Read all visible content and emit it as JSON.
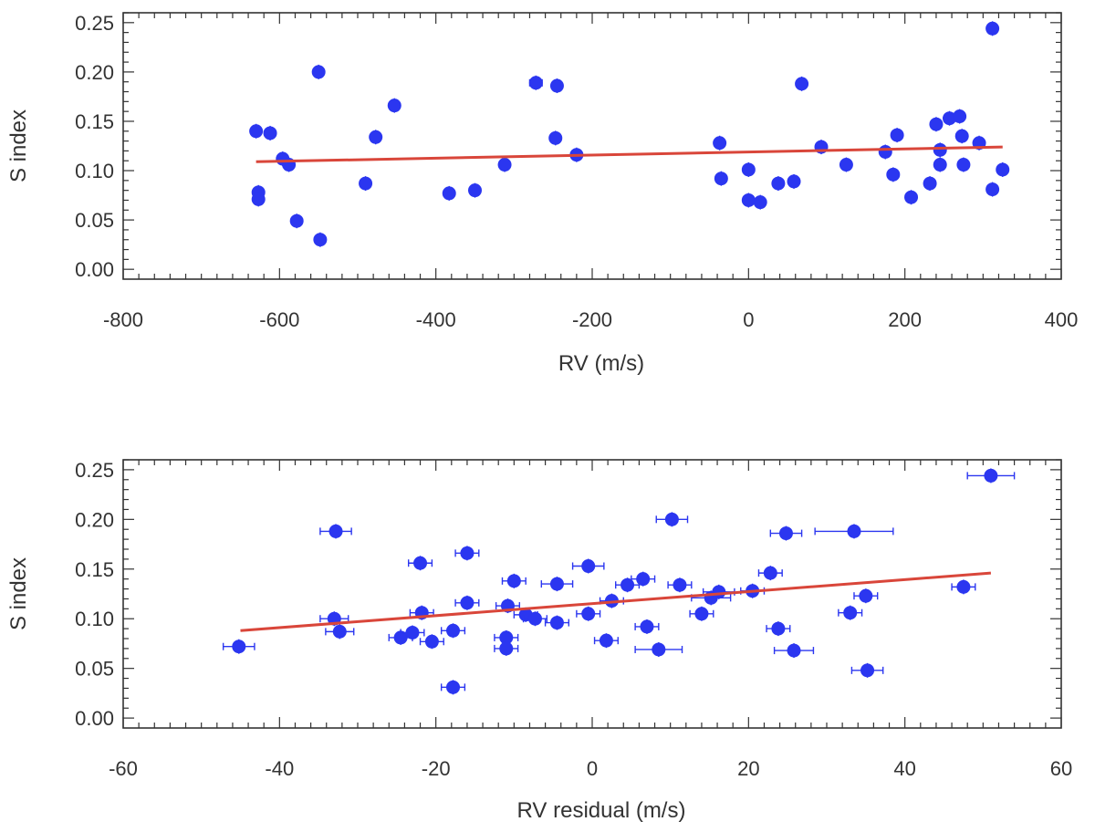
{
  "chart_data": [
    {
      "type": "scatter",
      "xlabel": "RV (m/s)",
      "ylabel": "S index",
      "xlim": [
        -800,
        400
      ],
      "ylim": [
        -0.01,
        0.26
      ],
      "xticks": [
        -800,
        -600,
        -400,
        -200,
        0,
        200,
        400
      ],
      "xtick_labels": [
        "-800",
        "-600",
        "-400",
        "-200",
        "0",
        "200",
        "400"
      ],
      "yticks": [
        0.0,
        0.05,
        0.1,
        0.15,
        0.2,
        0.25
      ],
      "ytick_labels": [
        "0.00",
        "0.05",
        "0.10",
        "0.15",
        "0.20",
        "0.25"
      ],
      "grid": false,
      "legend": "none",
      "marker_color": "#2b36f0",
      "fit_color": "#d9463a",
      "fit_line": {
        "x": [
          -630,
          325
        ],
        "y": [
          0.109,
          0.124
        ]
      },
      "points": [
        {
          "x": -630,
          "y": 0.14,
          "xerr": 4
        },
        {
          "x": -627,
          "y": 0.078,
          "xerr": 4
        },
        {
          "x": -627,
          "y": 0.071,
          "xerr": 4
        },
        {
          "x": -612,
          "y": 0.138,
          "xerr": 4
        },
        {
          "x": -596,
          "y": 0.112,
          "xerr": 4
        },
        {
          "x": -588,
          "y": 0.106,
          "xerr": 4
        },
        {
          "x": -578,
          "y": 0.049,
          "xerr": 4
        },
        {
          "x": -550,
          "y": 0.2,
          "xerr": 4
        },
        {
          "x": -548,
          "y": 0.03,
          "xerr": 4
        },
        {
          "x": -490,
          "y": 0.087,
          "xerr": 4
        },
        {
          "x": -477,
          "y": 0.134,
          "xerr": 4
        },
        {
          "x": -453,
          "y": 0.166,
          "xerr": 4
        },
        {
          "x": -383,
          "y": 0.077,
          "xerr": 4
        },
        {
          "x": -350,
          "y": 0.08,
          "xerr": 4
        },
        {
          "x": -312,
          "y": 0.106,
          "xerr": 4
        },
        {
          "x": -272,
          "y": 0.189,
          "xerr": 8
        },
        {
          "x": -245,
          "y": 0.186,
          "xerr": 4
        },
        {
          "x": -247,
          "y": 0.133,
          "xerr": 4
        },
        {
          "x": -220,
          "y": 0.116,
          "xerr": 4
        },
        {
          "x": -37,
          "y": 0.128,
          "xerr": 4
        },
        {
          "x": -35,
          "y": 0.092,
          "xerr": 4
        },
        {
          "x": 0,
          "y": 0.101,
          "xerr": 4
        },
        {
          "x": 0,
          "y": 0.07,
          "xerr": 4
        },
        {
          "x": 15,
          "y": 0.068,
          "xerr": 4
        },
        {
          "x": 38,
          "y": 0.087,
          "xerr": 4
        },
        {
          "x": 58,
          "y": 0.089,
          "xerr": 4
        },
        {
          "x": 68,
          "y": 0.188,
          "xerr": 4
        },
        {
          "x": 93,
          "y": 0.124,
          "xerr": 4
        },
        {
          "x": 125,
          "y": 0.106,
          "xerr": 4
        },
        {
          "x": 175,
          "y": 0.119,
          "xerr": 4
        },
        {
          "x": 185,
          "y": 0.096,
          "xerr": 4
        },
        {
          "x": 190,
          "y": 0.136,
          "xerr": 4
        },
        {
          "x": 208,
          "y": 0.073,
          "xerr": 4
        },
        {
          "x": 232,
          "y": 0.087,
          "xerr": 4
        },
        {
          "x": 240,
          "y": 0.147,
          "xerr": 4
        },
        {
          "x": 245,
          "y": 0.121,
          "xerr": 4
        },
        {
          "x": 245,
          "y": 0.106,
          "xerr": 4
        },
        {
          "x": 257,
          "y": 0.153,
          "xerr": 4
        },
        {
          "x": 270,
          "y": 0.155,
          "xerr": 4
        },
        {
          "x": 273,
          "y": 0.135,
          "xerr": 4
        },
        {
          "x": 275,
          "y": 0.106,
          "xerr": 4
        },
        {
          "x": 295,
          "y": 0.128,
          "xerr": 4
        },
        {
          "x": 312,
          "y": 0.081,
          "xerr": 4
        },
        {
          "x": 312,
          "y": 0.244,
          "xerr": 4
        },
        {
          "x": 325,
          "y": 0.101,
          "xerr": 4
        }
      ]
    },
    {
      "type": "scatter",
      "xlabel": "RV residual (m/s)",
      "ylabel": "S index",
      "xlim": [
        -60,
        60
      ],
      "ylim": [
        -0.01,
        0.26
      ],
      "xticks": [
        -60,
        -40,
        -20,
        0,
        20,
        40,
        60
      ],
      "xtick_labels": [
        "-60",
        "-40",
        "-20",
        "0",
        "20",
        "40",
        "60"
      ],
      "yticks": [
        0.0,
        0.05,
        0.1,
        0.15,
        0.2,
        0.25
      ],
      "ytick_labels": [
        "0.00",
        "0.05",
        "0.10",
        "0.15",
        "0.20",
        "0.25"
      ],
      "grid": false,
      "legend": "none",
      "marker_color": "#2b36f0",
      "fit_color": "#d9463a",
      "fit_line": {
        "x": [
          -45,
          51
        ],
        "y": [
          0.088,
          0.146
        ]
      },
      "points": [
        {
          "x": -45.2,
          "y": 0.072,
          "xerr": 2.0
        },
        {
          "x": -32.8,
          "y": 0.188,
          "xerr": 2.0
        },
        {
          "x": -33.0,
          "y": 0.1,
          "xerr": 1.8
        },
        {
          "x": -32.3,
          "y": 0.087,
          "xerr": 1.8
        },
        {
          "x": -24.5,
          "y": 0.081,
          "xerr": 1.5
        },
        {
          "x": -23.0,
          "y": 0.086,
          "xerr": 1.5
        },
        {
          "x": -22.0,
          "y": 0.156,
          "xerr": 1.5
        },
        {
          "x": -21.8,
          "y": 0.106,
          "xerr": 1.5
        },
        {
          "x": -20.5,
          "y": 0.077,
          "xerr": 1.5
        },
        {
          "x": -17.8,
          "y": 0.088,
          "xerr": 1.5
        },
        {
          "x": -17.8,
          "y": 0.031,
          "xerr": 1.5
        },
        {
          "x": -16.0,
          "y": 0.166,
          "xerr": 1.5
        },
        {
          "x": -16.0,
          "y": 0.116,
          "xerr": 1.5
        },
        {
          "x": -10.8,
          "y": 0.113,
          "xerr": 1.5
        },
        {
          "x": -11.0,
          "y": 0.081,
          "xerr": 1.5
        },
        {
          "x": -11.0,
          "y": 0.07,
          "xerr": 1.5
        },
        {
          "x": -10.0,
          "y": 0.138,
          "xerr": 1.5
        },
        {
          "x": -8.5,
          "y": 0.104,
          "xerr": 1.5
        },
        {
          "x": -7.3,
          "y": 0.1,
          "xerr": 1.5
        },
        {
          "x": -4.5,
          "y": 0.096,
          "xerr": 1.5
        },
        {
          "x": -4.5,
          "y": 0.135,
          "xerr": 2.0
        },
        {
          "x": -0.5,
          "y": 0.153,
          "xerr": 2.0
        },
        {
          "x": -0.5,
          "y": 0.105,
          "xerr": 1.5
        },
        {
          "x": 1.8,
          "y": 0.078,
          "xerr": 1.5
        },
        {
          "x": 2.5,
          "y": 0.118,
          "xerr": 1.5
        },
        {
          "x": 4.5,
          "y": 0.134,
          "xerr": 1.5
        },
        {
          "x": 6.5,
          "y": 0.14,
          "xerr": 1.5
        },
        {
          "x": 7.0,
          "y": 0.092,
          "xerr": 1.5
        },
        {
          "x": 8.5,
          "y": 0.069,
          "xerr": 3.0
        },
        {
          "x": 10.2,
          "y": 0.2,
          "xerr": 2.0
        },
        {
          "x": 11.2,
          "y": 0.134,
          "xerr": 1.5
        },
        {
          "x": 14.0,
          "y": 0.105,
          "xerr": 1.5
        },
        {
          "x": 15.2,
          "y": 0.121,
          "xerr": 2.5
        },
        {
          "x": 16.2,
          "y": 0.127,
          "xerr": 2.0
        },
        {
          "x": 20.5,
          "y": 0.128,
          "xerr": 1.5
        },
        {
          "x": 22.8,
          "y": 0.146,
          "xerr": 1.5
        },
        {
          "x": 23.8,
          "y": 0.09,
          "xerr": 1.5
        },
        {
          "x": 24.8,
          "y": 0.186,
          "xerr": 2.0
        },
        {
          "x": 25.8,
          "y": 0.068,
          "xerr": 2.5
        },
        {
          "x": 33.5,
          "y": 0.188,
          "xerr": 5.0
        },
        {
          "x": 33.0,
          "y": 0.106,
          "xerr": 1.5
        },
        {
          "x": 35.0,
          "y": 0.123,
          "xerr": 1.5
        },
        {
          "x": 35.2,
          "y": 0.048,
          "xerr": 2.0
        },
        {
          "x": 47.5,
          "y": 0.132,
          "xerr": 1.5
        },
        {
          "x": 51.0,
          "y": 0.244,
          "xerr": 3.0
        }
      ]
    }
  ]
}
